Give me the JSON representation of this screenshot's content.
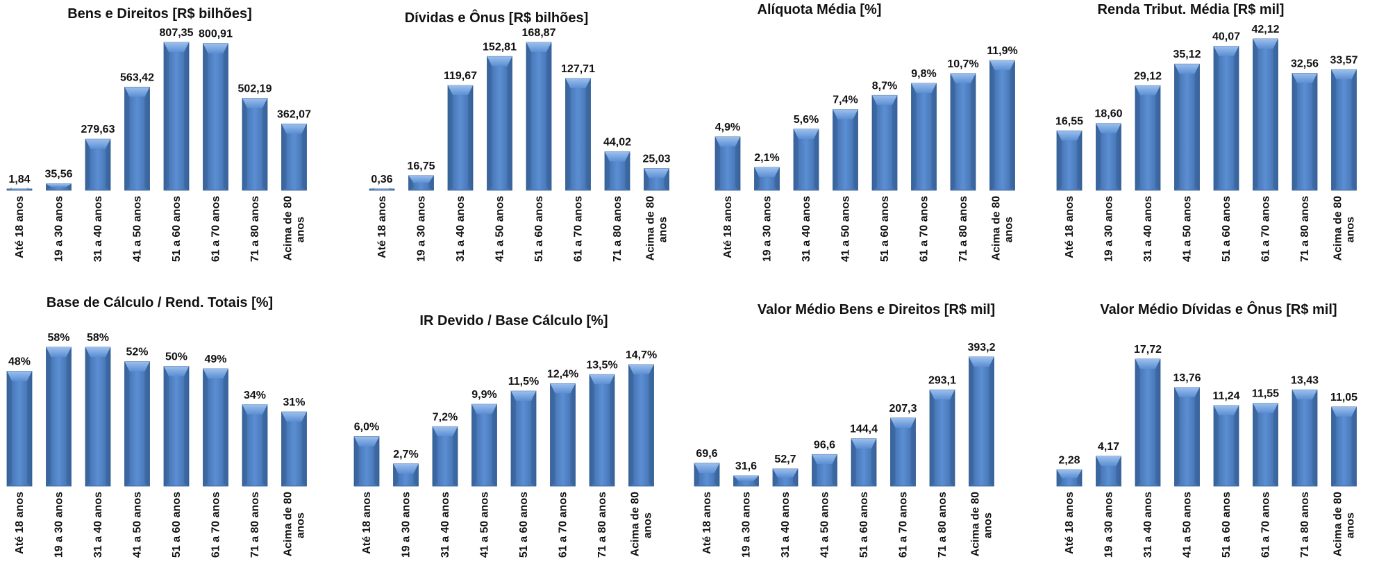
{
  "chart_data": [
    {
      "type": "bar",
      "title": "Bens e Direitos [R$ bilhões]",
      "categories": [
        "Até 18 anos",
        "19 a 30 anos",
        "31 a 40 anos",
        "41 a 50 anos",
        "51 a 60 anos",
        "61 a 70 anos",
        "71 a 80 anos",
        "Acima de 80 anos"
      ],
      "values": [
        1.84,
        35.56,
        279.63,
        563.42,
        807.35,
        800.91,
        502.19,
        362.07
      ],
      "labels": [
        "1,84",
        "35,56",
        "279,63",
        "563,42",
        "807,35",
        "800,91",
        "502,19",
        "362,07"
      ],
      "ylim": [
        0,
        807.35
      ]
    },
    {
      "type": "bar",
      "title": "Dívidas e Ônus [R$ bilhões]",
      "categories": [
        "Até 18 anos",
        "19 a 30 anos",
        "31 a 40 anos",
        "41 a 50 anos",
        "51 a 60 anos",
        "61 a 70 anos",
        "71 a 80 anos",
        "Acima de 80 anos"
      ],
      "values": [
        0.36,
        16.75,
        119.67,
        152.81,
        168.87,
        127.71,
        44.02,
        25.03
      ],
      "labels": [
        "0,36",
        "16,75",
        "119,67",
        "152,81",
        "168,87",
        "127,71",
        "44,02",
        "25,03"
      ],
      "ylim": [
        0,
        168.87
      ]
    },
    {
      "type": "bar",
      "title": "Alíquota Média [%]",
      "categories": [
        "Até 18 anos",
        "19 a 30 anos",
        "31 a 40 anos",
        "41 a 50 anos",
        "51 a 60 anos",
        "61 a 70 anos",
        "71 a 80 anos",
        "Acima de 80 anos"
      ],
      "values": [
        4.9,
        2.1,
        5.6,
        7.4,
        8.7,
        9.8,
        10.7,
        11.9
      ],
      "labels": [
        "4,9%",
        "2,1%",
        "5,6%",
        "7,4%",
        "8,7%",
        "9,8%",
        "10,7%",
        "11,9%"
      ],
      "ylim": [
        0,
        11.9
      ]
    },
    {
      "type": "bar",
      "title": "Renda Tribut. Média [R$ mil]",
      "categories": [
        "Até 18 anos",
        "19 a 30 anos",
        "31 a 40 anos",
        "41 a 50 anos",
        "51 a 60 anos",
        "61 a 70 anos",
        "71 a 80 anos",
        "Acima de 80 anos"
      ],
      "values": [
        16.55,
        18.6,
        29.12,
        35.12,
        40.07,
        42.12,
        32.56,
        33.57
      ],
      "labels": [
        "16,55",
        "18,60",
        "29,12",
        "35,12",
        "40,07",
        "42,12",
        "32,56",
        "33,57"
      ],
      "ylim": [
        0,
        42.12
      ]
    },
    {
      "type": "bar",
      "title": "Base de Cálculo / Rend. Totais [%]",
      "categories": [
        "Até 18 anos",
        "19 a 30 anos",
        "31 a 40 anos",
        "41 a 50 anos",
        "51 a 60 anos",
        "61 a 70 anos",
        "71 a 80 anos",
        "Acima de 80 anos"
      ],
      "values": [
        48,
        58,
        58,
        52,
        50,
        49,
        34,
        31
      ],
      "labels": [
        "48%",
        "58%",
        "58%",
        "52%",
        "50%",
        "49%",
        "34%",
        "31%"
      ],
      "ylim": [
        0,
        58
      ]
    },
    {
      "type": "bar",
      "title": "IR Devido / Base Cálculo [%]",
      "categories": [
        "Até 18 anos",
        "19 a 30 anos",
        "31 a 40 anos",
        "41 a 50 anos",
        "51 a 60 anos",
        "61 a 70 anos",
        "71 a 80 anos",
        "Acima de 80 anos"
      ],
      "values": [
        6.0,
        2.7,
        7.2,
        9.9,
        11.5,
        12.4,
        13.5,
        14.7
      ],
      "labels": [
        "6,0%",
        "2,7%",
        "7,2%",
        "9,9%",
        "11,5%",
        "12,4%",
        "13,5%",
        "14,7%"
      ],
      "ylim": [
        0,
        14.7
      ]
    },
    {
      "type": "bar",
      "title": "Valor Médio Bens e Direitos [R$ mil]",
      "categories": [
        "Até 18 anos",
        "19 a 30 anos",
        "31 a 40 anos",
        "41 a 50 anos",
        "51 a 60 anos",
        "61 a 70 anos",
        "71 a 80 anos",
        "Acima de 80 anos"
      ],
      "values": [
        69.6,
        31.6,
        52.7,
        96.6,
        144.4,
        207.3,
        293.1,
        393.2
      ],
      "labels": [
        "69,6",
        "31,6",
        "52,7",
        "96,6",
        "144,4",
        "207,3",
        "293,1",
        "393,2"
      ],
      "ylim": [
        0,
        393.2
      ]
    },
    {
      "type": "bar",
      "title": "Valor Médio Dívidas e Ônus [R$ mil]",
      "categories": [
        "Até 18 anos",
        "19 a 30 anos",
        "31 a 40 anos",
        "41 a 50 anos",
        "51 a 60 anos",
        "61 a 70 anos",
        "71 a 80 anos",
        "Acima de 80 anos"
      ],
      "values": [
        2.28,
        4.17,
        17.72,
        13.76,
        11.24,
        11.55,
        13.43,
        11.05
      ],
      "labels": [
        "2,28",
        "4,17",
        "17,72",
        "13,76",
        "11,24",
        "11,55",
        "13,43",
        "11,05"
      ],
      "ylim": [
        0,
        17.72
      ]
    }
  ]
}
